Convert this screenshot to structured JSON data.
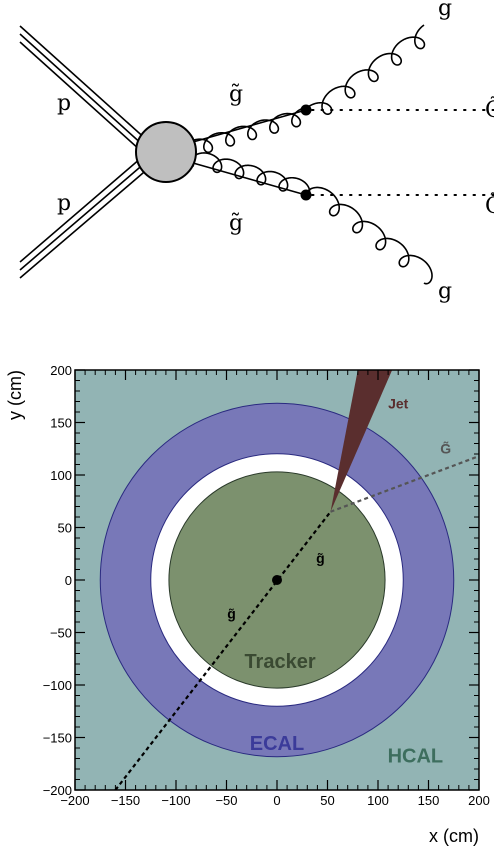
{
  "feynman": {
    "labels": {
      "proton_top": "p",
      "proton_bottom": "p",
      "gluino_top": "g̃",
      "gluino_bottom": "g̃",
      "gluon_top": "g",
      "gluon_bottom": "g",
      "gravitino_top": "G̃",
      "gravitino_bottom": "G̃"
    },
    "colors": {
      "blob": "#bfbfbf",
      "line": "#000000"
    }
  },
  "detector": {
    "chart_data": {
      "type": "diagram",
      "xlabel": "x (cm)",
      "ylabel": "y (cm)",
      "xlim": [
        -200,
        200
      ],
      "ylim": [
        -200,
        200
      ],
      "xticks": [
        -200,
        -150,
        -100,
        -50,
        0,
        50,
        100,
        150,
        200
      ],
      "yticks": [
        -200,
        -150,
        -100,
        -50,
        0,
        50,
        100,
        150,
        200
      ],
      "regions": [
        {
          "name": "HCAL",
          "label": "HCAL",
          "color": "#92b4b4",
          "label_color": "#3d6e5e",
          "label_pos": [
            137,
            -167
          ]
        },
        {
          "name": "ECAL",
          "label": "ECAL",
          "outer_r": 175,
          "inner_r": 125,
          "color": "#7878b8",
          "label_color": "#3b3b9a",
          "label_pos": [
            0,
            -155
          ]
        },
        {
          "name": "Gap",
          "label": "",
          "outer_r": 125,
          "inner_r": 107,
          "color": "#ffffff"
        },
        {
          "name": "Tracker",
          "label": "Tracker",
          "outer_r": 107,
          "color": "#7c916e",
          "label_color": "#3a4a32",
          "label_pos": [
            3,
            -77
          ]
        }
      ],
      "annotations": [
        {
          "name": "interaction-point",
          "x": 0,
          "y": 0
        },
        {
          "name": "gluino-track",
          "label": "g̃",
          "from": [
            -160,
            -200
          ],
          "to": [
            53,
            65
          ],
          "label_pos_a": [
            -45,
            -30
          ],
          "label_pos_b": [
            43,
            23
          ]
        },
        {
          "name": "jet",
          "label": "Jet",
          "apex": [
            53,
            65
          ],
          "tip_left": [
            80,
            200
          ],
          "tip_right": [
            114,
            200
          ],
          "color": "#5a2e2e",
          "label_pos": [
            120,
            170
          ]
        },
        {
          "name": "gravitino-track",
          "label": "G̃",
          "from": [
            53,
            65
          ],
          "to": [
            200,
            118
          ],
          "color": "#555555",
          "label_pos": [
            167,
            127
          ]
        }
      ]
    }
  }
}
